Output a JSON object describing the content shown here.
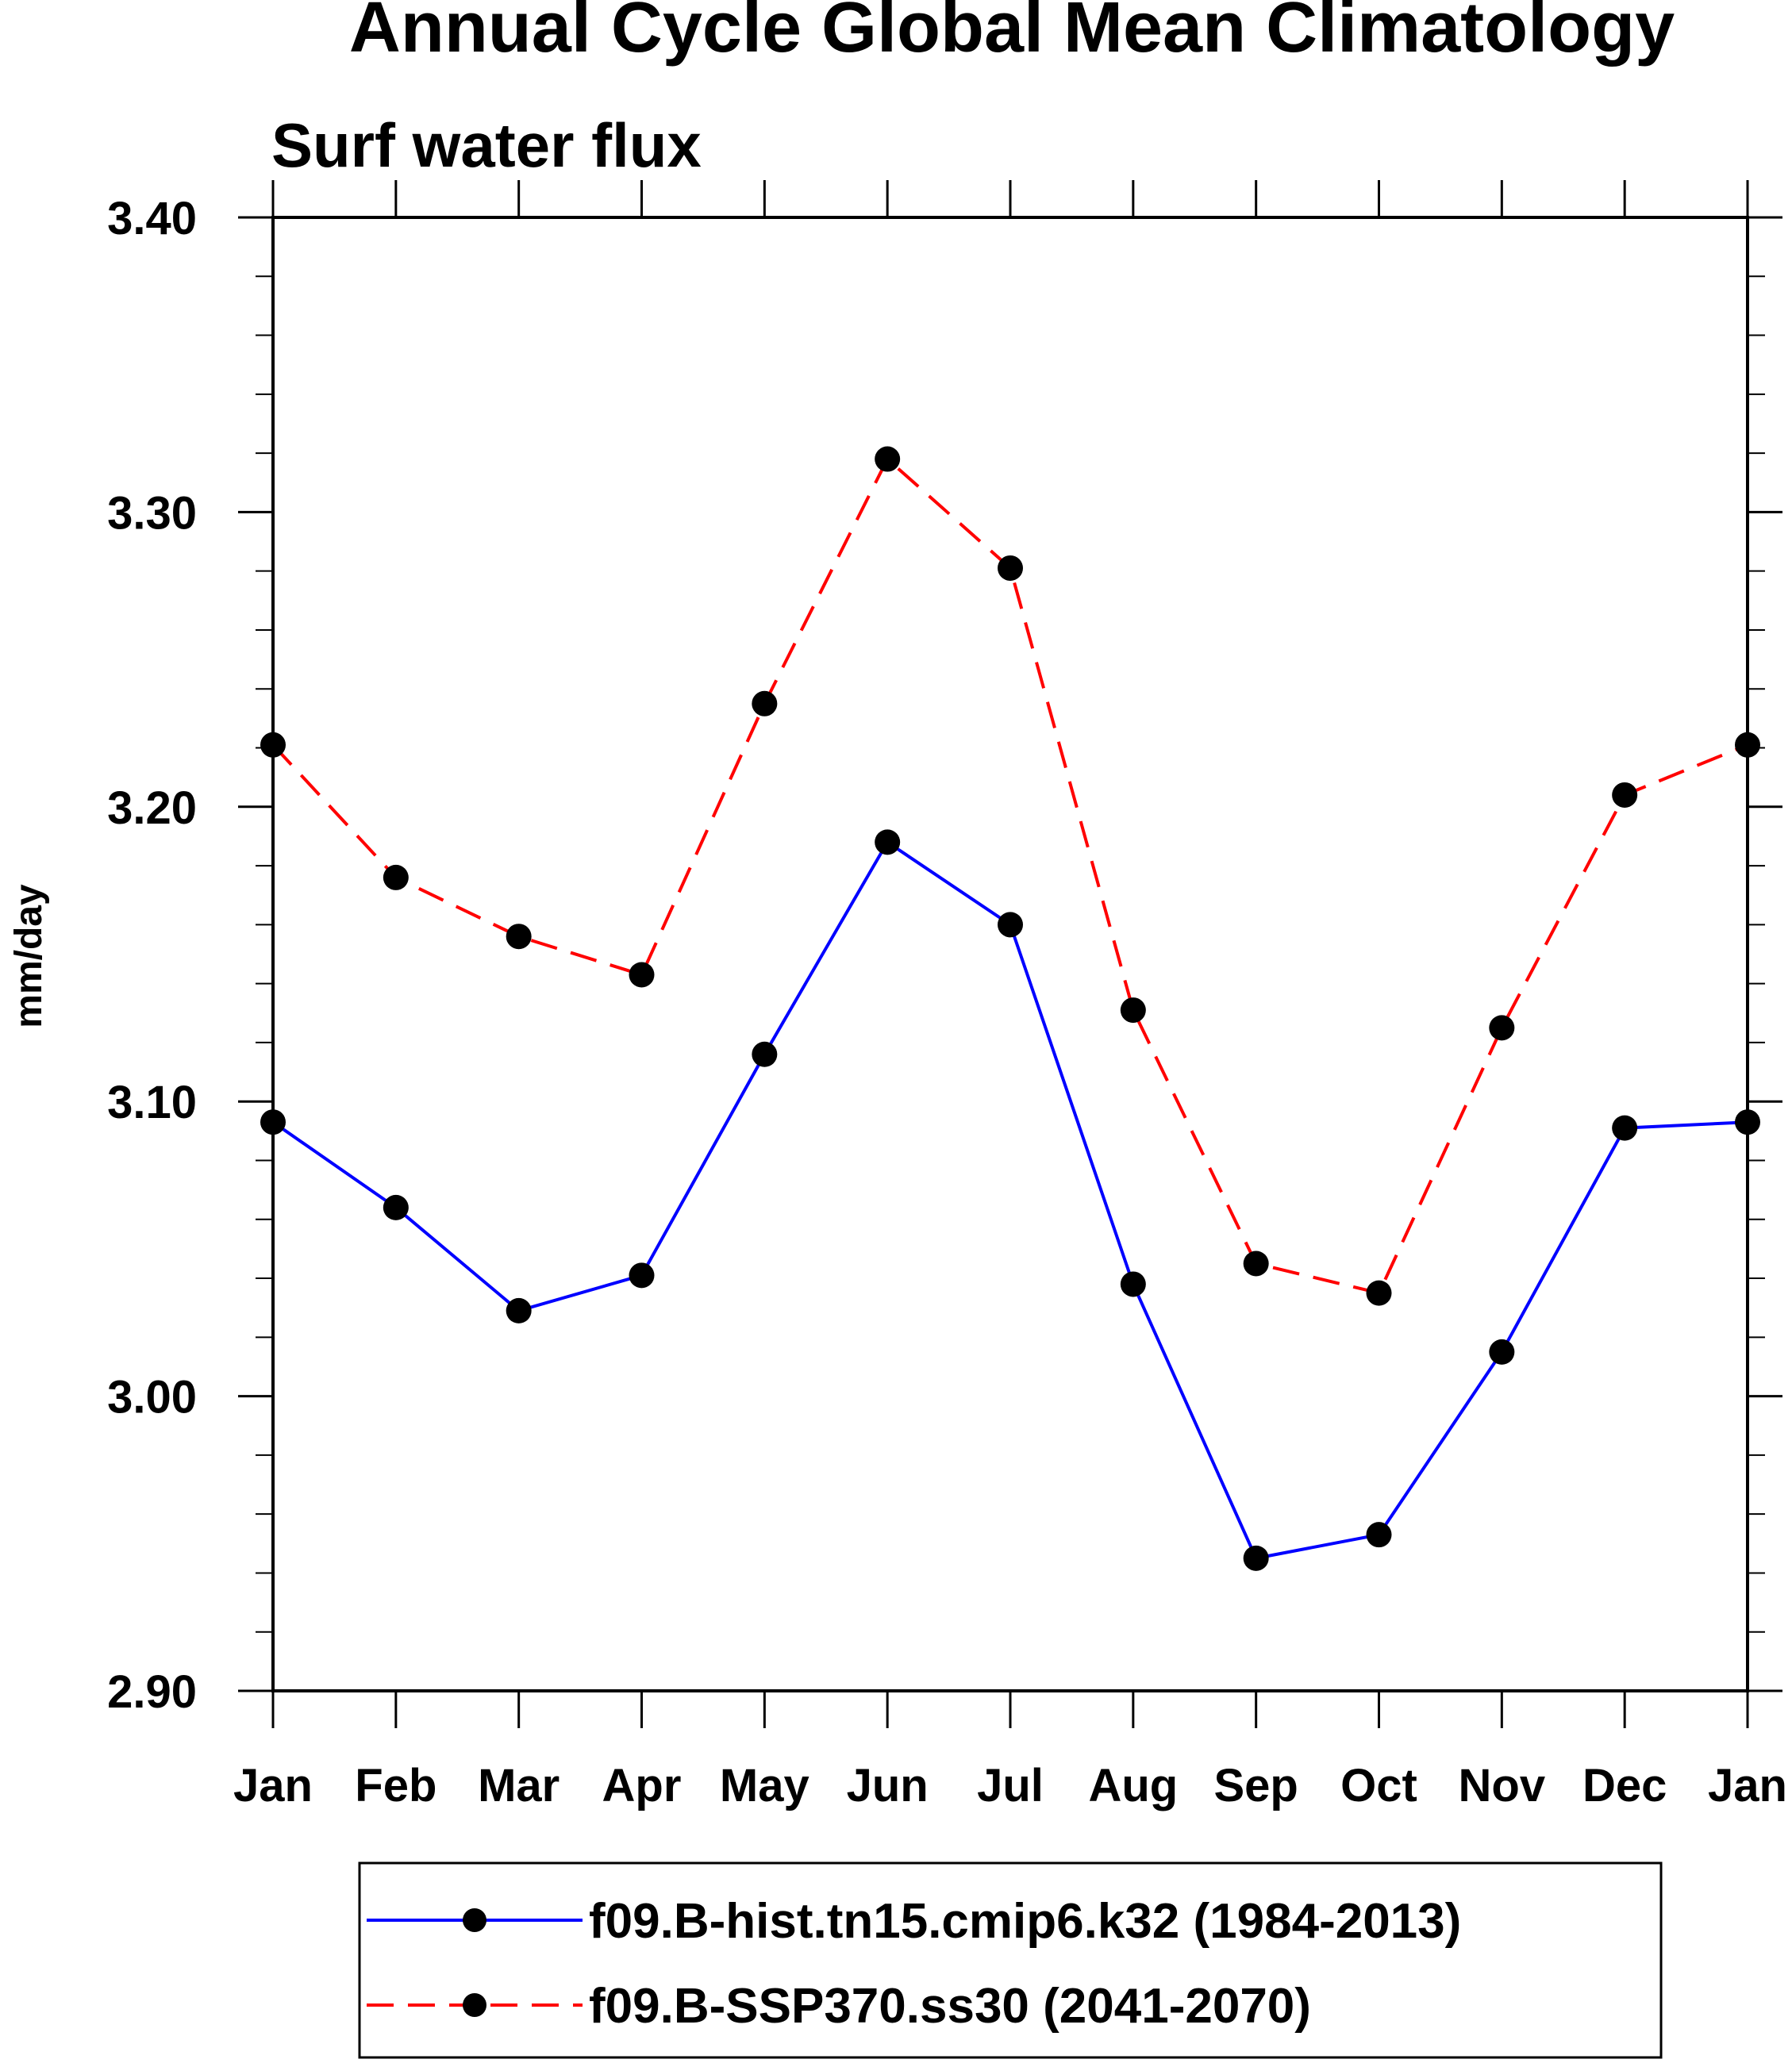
{
  "chart_data": {
    "type": "line",
    "title": "Annual Cycle Global Mean Climatology",
    "subtitle": "Surf water flux",
    "xlabel": "",
    "ylabel": "mm/day",
    "categories": [
      "Jan",
      "Feb",
      "Mar",
      "Apr",
      "May",
      "Jun",
      "Jul",
      "Aug",
      "Sep",
      "Oct",
      "Nov",
      "Dec",
      "Jan"
    ],
    "ylim": [
      2.9,
      3.4
    ],
    "yticks": [
      "2.90",
      "3.00",
      "3.10",
      "3.20",
      "3.30",
      "3.40"
    ],
    "y_minor_step": 0.02,
    "grid": false,
    "legend_position": "bottom",
    "series": [
      {
        "name": "f09.B-hist.tn15.cmip6.k32 (1984-2013)",
        "color": "#0000ff",
        "line_style": "solid",
        "marker": "filled-circle",
        "marker_color": "#000000",
        "values": [
          3.093,
          3.064,
          3.029,
          3.041,
          3.116,
          3.188,
          3.16,
          3.038,
          2.945,
          2.953,
          3.015,
          3.091,
          3.093
        ]
      },
      {
        "name": "f09.B-SSP370.ss30 (2041-2070)",
        "color": "#ff0000",
        "line_style": "dashed",
        "marker": "filled-circle",
        "marker_color": "#000000",
        "values": [
          3.221,
          3.176,
          3.156,
          3.143,
          3.235,
          3.318,
          3.281,
          3.131,
          3.045,
          3.035,
          3.125,
          3.204,
          3.221
        ]
      }
    ]
  }
}
